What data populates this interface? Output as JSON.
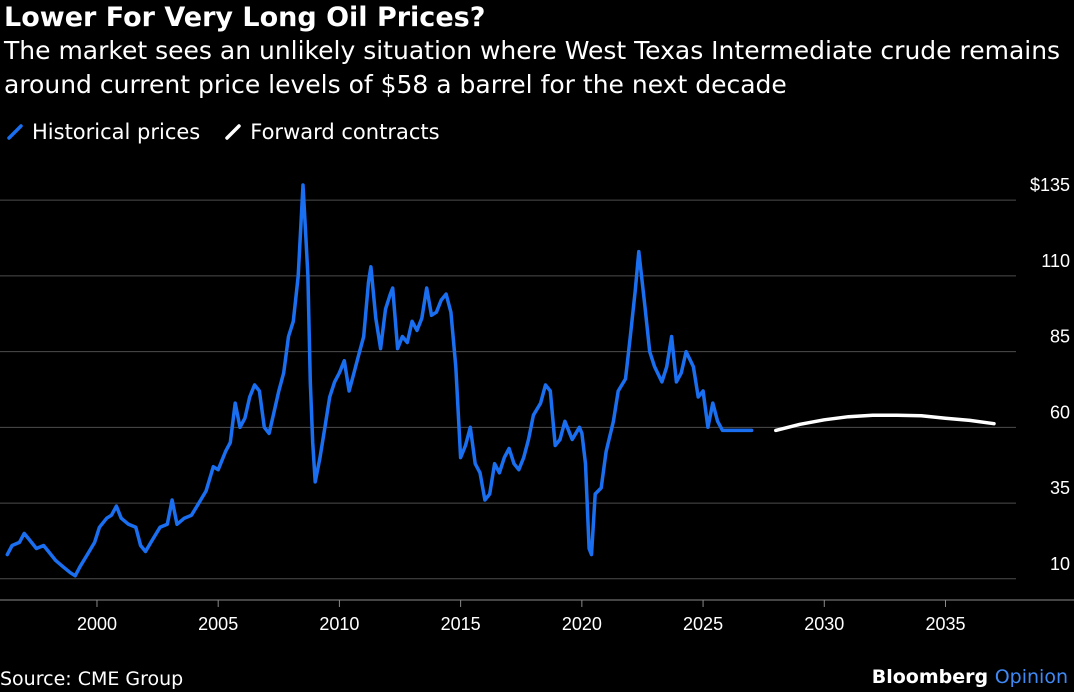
{
  "title": "Lower For Very Long Oil Prices?",
  "subtitle": "The market sees an unlikely situation where West Texas Intermediate crude remains around current price levels of $58 a barrel for the next decade",
  "legend": [
    {
      "label": "Historical prices",
      "color": "#1a6ef0",
      "icon": "slash-line-icon"
    },
    {
      "label": "Forward contracts",
      "color": "#ffffff",
      "icon": "slash-line-icon"
    }
  ],
  "source": "Source: CME Group",
  "brand": {
    "name": "Bloomberg",
    "suffix": "Opinion"
  },
  "colors": {
    "background": "#000000",
    "historical": "#1a6ef0",
    "forward": "#ffffff",
    "grid": "#4d4d4d",
    "brand_accent": "#3f89f5"
  },
  "chart_data": {
    "type": "line",
    "y_ticks": [
      {
        "value": 10,
        "label": "10"
      },
      {
        "value": 35,
        "label": "35"
      },
      {
        "value": 60,
        "label": "60"
      },
      {
        "value": 85,
        "label": "85"
      },
      {
        "value": 110,
        "label": "110"
      },
      {
        "value": 135,
        "label": "$135"
      }
    ],
    "x_ticks": [
      2000,
      2005,
      2010,
      2015,
      2020,
      2025,
      2030,
      2035
    ],
    "xlim": [
      1996,
      2040.3
    ],
    "ylim": [
      3,
      140
    ],
    "grid": "horizontal",
    "legend_position": "top-left",
    "series": [
      {
        "name": "Historical prices",
        "color": "#1a6ef0",
        "points": [
          [
            1996.3,
            18
          ],
          [
            1996.5,
            21
          ],
          [
            1996.8,
            22
          ],
          [
            1997.0,
            25
          ],
          [
            1997.2,
            23
          ],
          [
            1997.5,
            20
          ],
          [
            1997.8,
            21
          ],
          [
            1998.0,
            19
          ],
          [
            1998.3,
            16
          ],
          [
            1998.6,
            14
          ],
          [
            1998.9,
            12
          ],
          [
            1999.1,
            11
          ],
          [
            1999.3,
            14
          ],
          [
            1999.6,
            18
          ],
          [
            1999.9,
            22
          ],
          [
            2000.1,
            27
          ],
          [
            2000.4,
            30
          ],
          [
            2000.6,
            31
          ],
          [
            2000.8,
            34
          ],
          [
            2001.0,
            30
          ],
          [
            2001.3,
            28
          ],
          [
            2001.6,
            27
          ],
          [
            2001.8,
            21
          ],
          [
            2002.0,
            19
          ],
          [
            2002.3,
            23
          ],
          [
            2002.6,
            27
          ],
          [
            2002.9,
            28
          ],
          [
            2003.1,
            36
          ],
          [
            2003.3,
            28
          ],
          [
            2003.6,
            30
          ],
          [
            2003.9,
            31
          ],
          [
            2004.2,
            35
          ],
          [
            2004.5,
            39
          ],
          [
            2004.8,
            47
          ],
          [
            2005.0,
            46
          ],
          [
            2005.3,
            52
          ],
          [
            2005.5,
            55
          ],
          [
            2005.7,
            68
          ],
          [
            2005.9,
            60
          ],
          [
            2006.1,
            63
          ],
          [
            2006.3,
            70
          ],
          [
            2006.5,
            74
          ],
          [
            2006.7,
            72
          ],
          [
            2006.9,
            60
          ],
          [
            2007.1,
            58
          ],
          [
            2007.3,
            65
          ],
          [
            2007.5,
            72
          ],
          [
            2007.7,
            78
          ],
          [
            2007.9,
            90
          ],
          [
            2008.1,
            95
          ],
          [
            2008.3,
            110
          ],
          [
            2008.5,
            140
          ],
          [
            2008.6,
            125
          ],
          [
            2008.7,
            110
          ],
          [
            2008.8,
            75
          ],
          [
            2008.9,
            55
          ],
          [
            2009.0,
            42
          ],
          [
            2009.2,
            50
          ],
          [
            2009.4,
            60
          ],
          [
            2009.6,
            70
          ],
          [
            2009.8,
            75
          ],
          [
            2010.0,
            78
          ],
          [
            2010.2,
            82
          ],
          [
            2010.4,
            72
          ],
          [
            2010.6,
            78
          ],
          [
            2010.8,
            84
          ],
          [
            2011.0,
            90
          ],
          [
            2011.2,
            108
          ],
          [
            2011.3,
            113
          ],
          [
            2011.5,
            96
          ],
          [
            2011.7,
            86
          ],
          [
            2011.9,
            99
          ],
          [
            2012.1,
            104
          ],
          [
            2012.2,
            106
          ],
          [
            2012.4,
            86
          ],
          [
            2012.6,
            90
          ],
          [
            2012.8,
            88
          ],
          [
            2013.0,
            95
          ],
          [
            2013.2,
            92
          ],
          [
            2013.4,
            96
          ],
          [
            2013.6,
            106
          ],
          [
            2013.8,
            97
          ],
          [
            2014.0,
            98
          ],
          [
            2014.2,
            102
          ],
          [
            2014.4,
            104
          ],
          [
            2014.6,
            98
          ],
          [
            2014.8,
            80
          ],
          [
            2015.0,
            50
          ],
          [
            2015.2,
            54
          ],
          [
            2015.4,
            60
          ],
          [
            2015.6,
            48
          ],
          [
            2015.8,
            45
          ],
          [
            2016.0,
            36
          ],
          [
            2016.2,
            38
          ],
          [
            2016.4,
            48
          ],
          [
            2016.6,
            45
          ],
          [
            2016.8,
            50
          ],
          [
            2017.0,
            53
          ],
          [
            2017.2,
            48
          ],
          [
            2017.4,
            46
          ],
          [
            2017.6,
            50
          ],
          [
            2017.8,
            56
          ],
          [
            2018.0,
            64
          ],
          [
            2018.3,
            68
          ],
          [
            2018.5,
            74
          ],
          [
            2018.7,
            72
          ],
          [
            2018.9,
            54
          ],
          [
            2019.1,
            56
          ],
          [
            2019.3,
            62
          ],
          [
            2019.6,
            56
          ],
          [
            2019.9,
            60
          ],
          [
            2020.0,
            58
          ],
          [
            2020.15,
            48
          ],
          [
            2020.3,
            20
          ],
          [
            2020.4,
            18
          ],
          [
            2020.55,
            38
          ],
          [
            2020.8,
            40
          ],
          [
            2021.0,
            52
          ],
          [
            2021.3,
            62
          ],
          [
            2021.5,
            72
          ],
          [
            2021.8,
            76
          ],
          [
            2022.0,
            90
          ],
          [
            2022.2,
            105
          ],
          [
            2022.35,
            118
          ],
          [
            2022.6,
            100
          ],
          [
            2022.8,
            85
          ],
          [
            2023.0,
            80
          ],
          [
            2023.3,
            75
          ],
          [
            2023.5,
            80
          ],
          [
            2023.7,
            90
          ],
          [
            2023.9,
            75
          ],
          [
            2024.1,
            78
          ],
          [
            2024.3,
            85
          ],
          [
            2024.6,
            80
          ],
          [
            2024.8,
            70
          ],
          [
            2025.0,
            72
          ],
          [
            2025.2,
            60
          ],
          [
            2025.4,
            68
          ],
          [
            2025.6,
            62
          ],
          [
            2025.8,
            59
          ],
          [
            2026.2,
            59
          ],
          [
            2026.6,
            59
          ],
          [
            2027.0,
            59
          ]
        ]
      },
      {
        "name": "Forward contracts",
        "color": "#ffffff",
        "points": [
          [
            2028.0,
            59
          ],
          [
            2029.0,
            61
          ],
          [
            2030.0,
            62.5
          ],
          [
            2031.0,
            63.5
          ],
          [
            2032.0,
            64
          ],
          [
            2033.0,
            64
          ],
          [
            2034.0,
            63.8
          ],
          [
            2035.0,
            63
          ],
          [
            2036.0,
            62.3
          ],
          [
            2037.0,
            61.2
          ]
        ]
      }
    ]
  }
}
